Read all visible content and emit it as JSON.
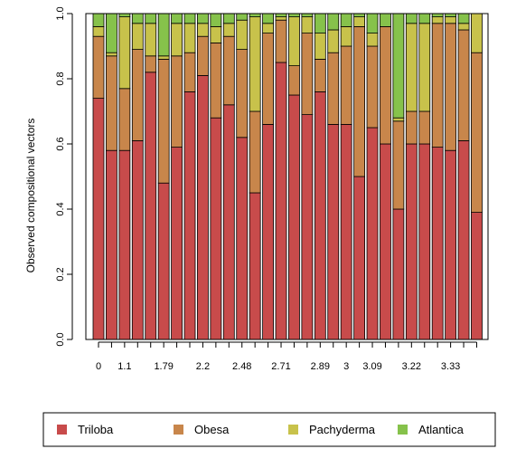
{
  "chart_data": {
    "type": "bar",
    "stacked": true,
    "title": "",
    "ylabel": "Observed compositional vectors",
    "xlabel": "",
    "ylim": [
      0,
      1
    ],
    "yticks": [
      "0.0",
      "0.2",
      "0.4",
      "0.6",
      "0.8",
      "1.0"
    ],
    "grid": false,
    "legend_position": "bottom",
    "x_tick_labels": [
      "0",
      "1.1",
      "1.79",
      "2.2",
      "2.48",
      "2.71",
      "2.89",
      "3",
      "3.09",
      "3.22",
      "3.33"
    ],
    "x_tick_label_bar_index": [
      0,
      2,
      5,
      8,
      11,
      14,
      17,
      19,
      21,
      24,
      27
    ],
    "series": [
      {
        "name": "Triloba",
        "color": "#C84B4B",
        "values": [
          0.74,
          0.58,
          0.58,
          0.61,
          0.82,
          0.48,
          0.59,
          0.76,
          0.81,
          0.68,
          0.72,
          0.62,
          0.45,
          0.66,
          0.85,
          0.75,
          0.69,
          0.76,
          0.66,
          0.66,
          0.5,
          0.65,
          0.6,
          0.4,
          0.6,
          0.6,
          0.59,
          0.58,
          0.61,
          0.39
        ]
      },
      {
        "name": "Obesa",
        "color": "#C8864B",
        "values": [
          0.19,
          0.29,
          0.19,
          0.28,
          0.05,
          0.38,
          0.28,
          0.12,
          0.12,
          0.23,
          0.21,
          0.27,
          0.25,
          0.28,
          0.13,
          0.09,
          0.25,
          0.1,
          0.22,
          0.24,
          0.46,
          0.25,
          0.36,
          0.27,
          0.1,
          0.1,
          0.38,
          0.39,
          0.34,
          0.49
        ]
      },
      {
        "name": "Pachyderma",
        "color": "#C8C24B",
        "values": [
          0.03,
          0.01,
          0.22,
          0.08,
          0.1,
          0.01,
          0.1,
          0.09,
          0.04,
          0.05,
          0.04,
          0.09,
          0.29,
          0.03,
          0.01,
          0.15,
          0.05,
          0.08,
          0.07,
          0.06,
          0.03,
          0.04,
          0.0,
          0.01,
          0.27,
          0.27,
          0.02,
          0.02,
          0.02,
          0.12
        ]
      },
      {
        "name": "Atlantica",
        "color": "#86C24B",
        "values": [
          0.04,
          0.12,
          0.01,
          0.03,
          0.03,
          0.13,
          0.03,
          0.03,
          0.03,
          0.04,
          0.03,
          0.02,
          0.01,
          0.03,
          0.01,
          0.01,
          0.01,
          0.06,
          0.05,
          0.04,
          0.01,
          0.06,
          0.04,
          0.32,
          0.03,
          0.03,
          0.01,
          0.01,
          0.03,
          0.0
        ]
      }
    ]
  }
}
